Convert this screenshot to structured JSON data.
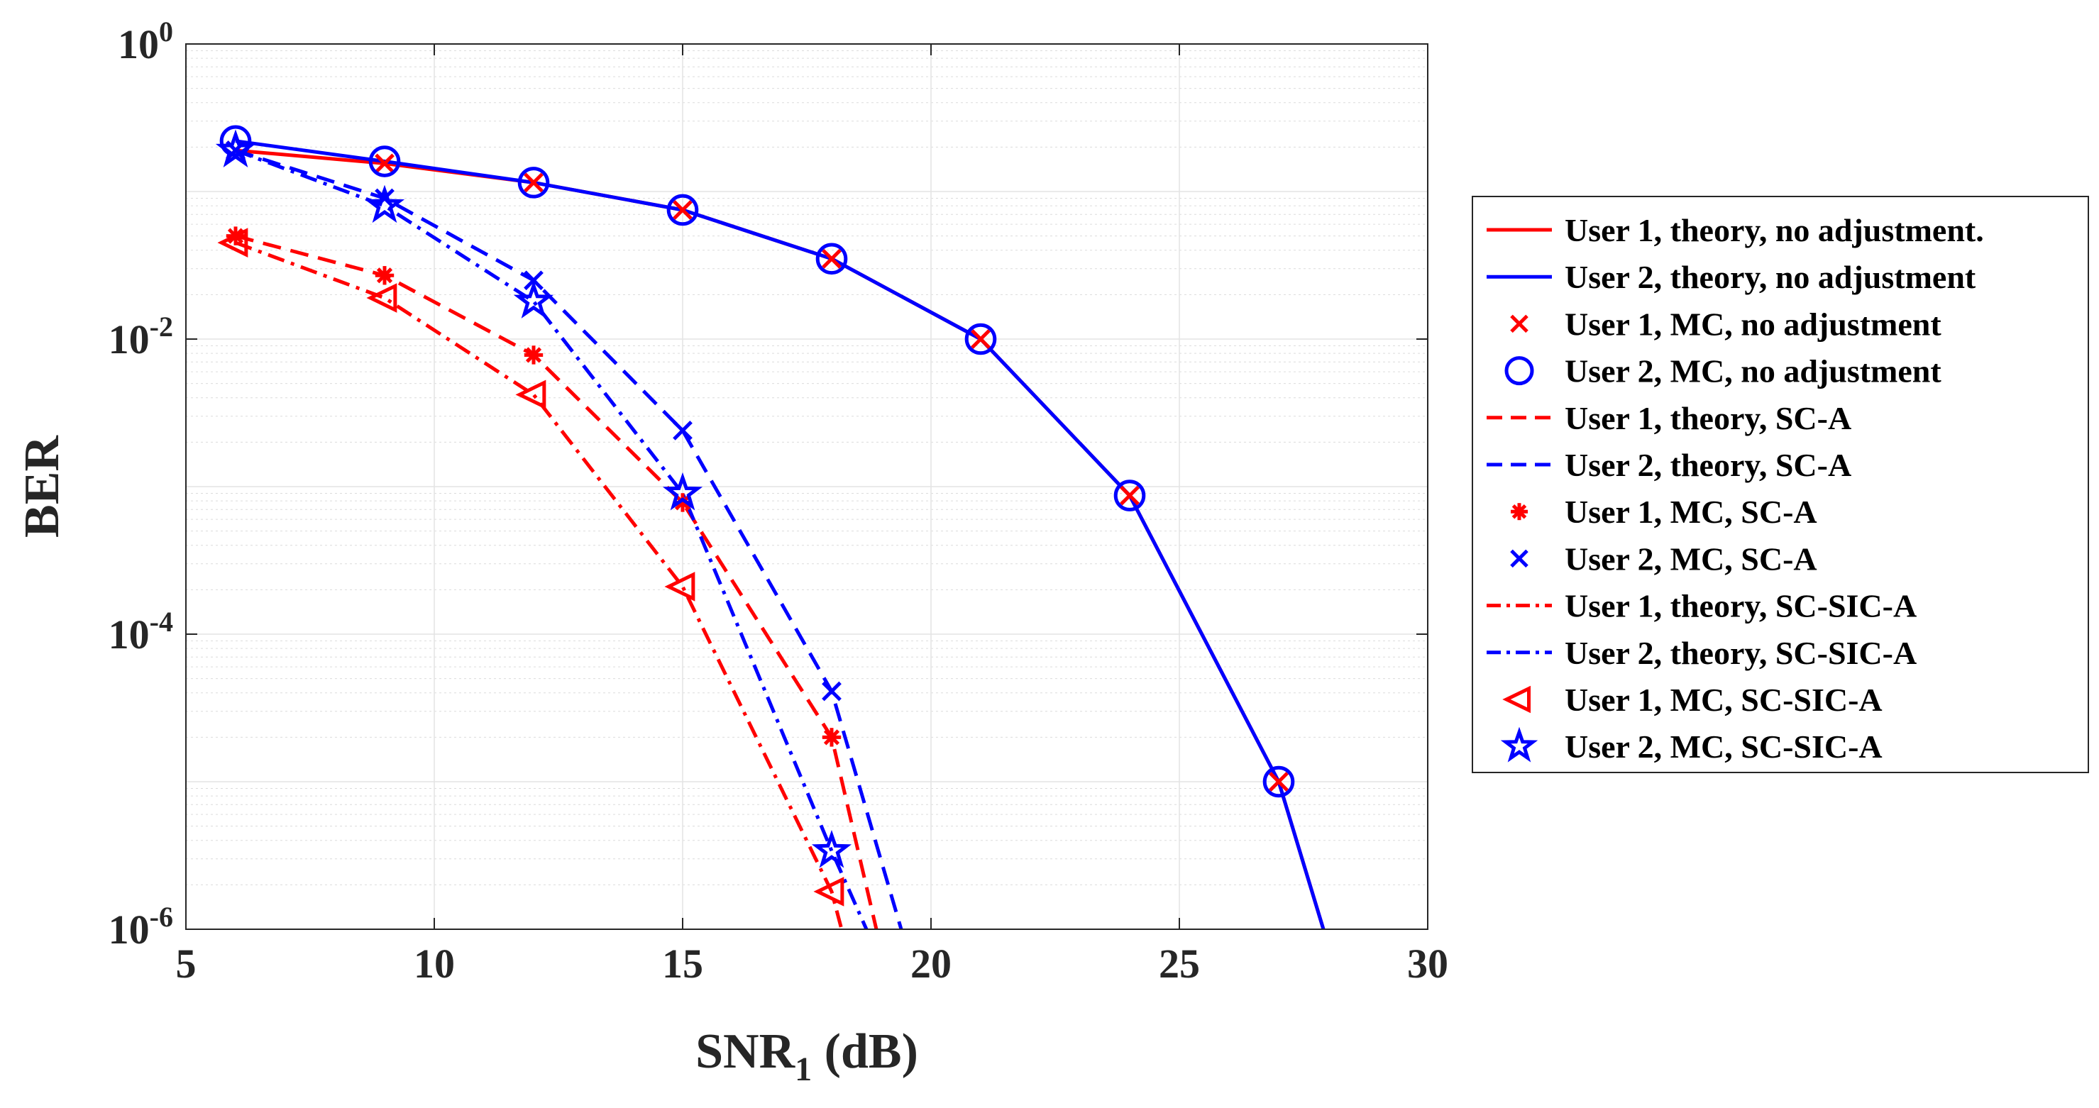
{
  "chart_data": {
    "type": "line",
    "yscale": "log",
    "xlabel_main": "SNR",
    "xlabel_sub": "1",
    "xlabel_tail": " (dB)",
    "ylabel": "BER",
    "xlim": [
      5,
      30
    ],
    "ylim_exp": [
      -6,
      0
    ],
    "xticks": [
      5,
      10,
      15,
      20,
      25,
      30
    ],
    "yticks": [
      {
        "base": "10",
        "exp": "-6",
        "value": -6
      },
      {
        "base": "10",
        "exp": "-4",
        "value": -4
      },
      {
        "base": "10",
        "exp": "-2",
        "value": -2
      },
      {
        "base": "10",
        "exp": "0",
        "value": 0
      }
    ],
    "grid": true,
    "minor_grid": true,
    "legend_position": "outside-right",
    "colors": {
      "red": "#ff0000",
      "blue": "#0000ff"
    },
    "series": [
      {
        "name": "User 1, theory, no adjustment.",
        "color": "red",
        "line": "solid",
        "marker": "none",
        "x": [
          6,
          9,
          12,
          15,
          18,
          21,
          24,
          27,
          27.9
        ],
        "y": [
          0.19,
          0.155,
          0.115,
          0.075,
          0.035,
          0.01,
          0.00087,
          1e-05,
          1e-06
        ]
      },
      {
        "name": "User 2, theory, no adjustment",
        "color": "blue",
        "line": "solid",
        "marker": "none",
        "x": [
          6,
          9,
          12,
          15,
          18,
          21,
          24,
          27,
          27.9
        ],
        "y": [
          0.22,
          0.16,
          0.115,
          0.075,
          0.035,
          0.01,
          0.00087,
          1e-05,
          1e-06
        ]
      },
      {
        "name": "User 1, MC, no adjustment",
        "color": "red",
        "line": "none",
        "marker": "x",
        "x": [
          6,
          9,
          12,
          15,
          18,
          21,
          24,
          27
        ],
        "y": [
          0.19,
          0.155,
          0.115,
          0.075,
          0.035,
          0.01,
          0.00087,
          1e-05
        ]
      },
      {
        "name": "User 2, MC, no adjustment",
        "color": "blue",
        "line": "none",
        "marker": "circle",
        "x": [
          6,
          9,
          12,
          15,
          18,
          21,
          24,
          27
        ],
        "y": [
          0.22,
          0.16,
          0.115,
          0.075,
          0.035,
          0.01,
          0.00087,
          1e-05
        ]
      },
      {
        "name": "User 1, theory, SC-A",
        "color": "red",
        "line": "dashed",
        "marker": "none",
        "x": [
          6,
          9,
          12,
          15,
          18,
          18.9
        ],
        "y": [
          0.05,
          0.027,
          0.0078,
          0.00078,
          2e-05,
          1e-06
        ]
      },
      {
        "name": "User 2, theory, SC-A",
        "color": "blue",
        "line": "dashed",
        "marker": "none",
        "x": [
          6,
          9,
          12,
          15,
          18,
          19.4
        ],
        "y": [
          0.19,
          0.09,
          0.025,
          0.0024,
          4.1e-05,
          1e-06
        ]
      },
      {
        "name": "User 1, MC, SC-A",
        "color": "red",
        "line": "none",
        "marker": "asterisk",
        "x": [
          6,
          9,
          12,
          15,
          18
        ],
        "y": [
          0.05,
          0.027,
          0.0078,
          0.00078,
          2e-05
        ]
      },
      {
        "name": "User 2, MC, SC-A",
        "color": "blue",
        "line": "none",
        "marker": "x",
        "x": [
          6,
          9,
          12,
          15,
          18
        ],
        "y": [
          0.19,
          0.09,
          0.025,
          0.0024,
          4.1e-05
        ]
      },
      {
        "name": "User 1, theory, SC-SIC-A",
        "color": "red",
        "line": "dashdot",
        "marker": "none",
        "x": [
          6,
          9,
          12,
          15,
          18,
          18.2
        ],
        "y": [
          0.045,
          0.019,
          0.0042,
          0.00021,
          1.8e-06,
          1e-06
        ]
      },
      {
        "name": "User 2, theory, SC-SIC-A",
        "color": "blue",
        "line": "dashdot",
        "marker": "none",
        "x": [
          6,
          9,
          12,
          15,
          18,
          18.7
        ],
        "y": [
          0.19,
          0.08,
          0.018,
          0.0009,
          3.4e-06,
          1e-06
        ]
      },
      {
        "name": "User 1, MC, SC-SIC-A",
        "color": "red",
        "line": "none",
        "marker": "triangle-left",
        "x": [
          6,
          9,
          12,
          15,
          18
        ],
        "y": [
          0.045,
          0.019,
          0.0042,
          0.00021,
          1.8e-06
        ]
      },
      {
        "name": "User 2, MC, SC-SIC-A",
        "color": "blue",
        "line": "none",
        "marker": "star",
        "x": [
          6,
          9,
          12,
          15,
          18
        ],
        "y": [
          0.19,
          0.08,
          0.018,
          0.0009,
          3.4e-06
        ]
      }
    ]
  }
}
